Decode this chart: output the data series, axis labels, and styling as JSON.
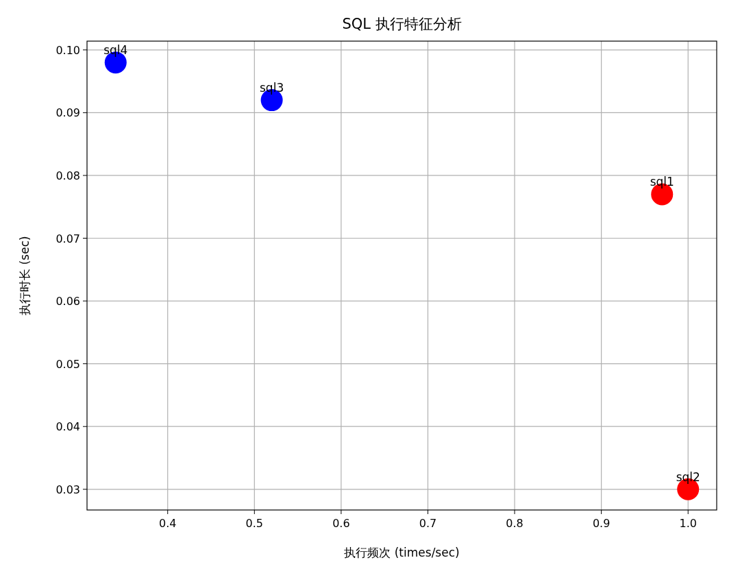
{
  "chart_data": {
    "type": "scatter",
    "title": "SQL 执行特征分析",
    "xlabel": "执行频次 (times/sec)",
    "ylabel": "执行时长 (sec)",
    "x": [
      0.97,
      1.0,
      0.52,
      0.34
    ],
    "values": [
      0.077,
      0.03,
      0.092,
      0.098
    ],
    "colors": [
      "#ff0000",
      "#ff0000",
      "#0000ff",
      "#0000ff"
    ],
    "annotations": [
      {
        "text": "sql1",
        "x": 0.97,
        "y": 0.077
      },
      {
        "text": "sql2",
        "x": 1.0,
        "y": 0.03
      },
      {
        "text": "sql3",
        "x": 0.52,
        "y": 0.092
      },
      {
        "text": "sql4",
        "x": 0.34,
        "y": 0.098
      }
    ],
    "xlim": [
      0.307,
      1.033
    ],
    "ylim": [
      0.0267,
      0.1014
    ],
    "xticks": [
      {
        "value": 0.4,
        "label": "0.4"
      },
      {
        "value": 0.5,
        "label": "0.5"
      },
      {
        "value": 0.6,
        "label": "0.6"
      },
      {
        "value": 0.7,
        "label": "0.7"
      },
      {
        "value": 0.8,
        "label": "0.8"
      },
      {
        "value": 0.9,
        "label": "0.9"
      },
      {
        "value": 1.0,
        "label": "1.0"
      }
    ],
    "yticks": [
      {
        "value": 0.03,
        "label": "0.03"
      },
      {
        "value": 0.04,
        "label": "0.04"
      },
      {
        "value": 0.05,
        "label": "0.05"
      },
      {
        "value": 0.06,
        "label": "0.06"
      },
      {
        "value": 0.07,
        "label": "0.07"
      },
      {
        "value": 0.08,
        "label": "0.08"
      },
      {
        "value": 0.09,
        "label": "0.09"
      },
      {
        "value": 0.1,
        "label": "0.10"
      }
    ],
    "grid": true,
    "marker": "circle"
  }
}
